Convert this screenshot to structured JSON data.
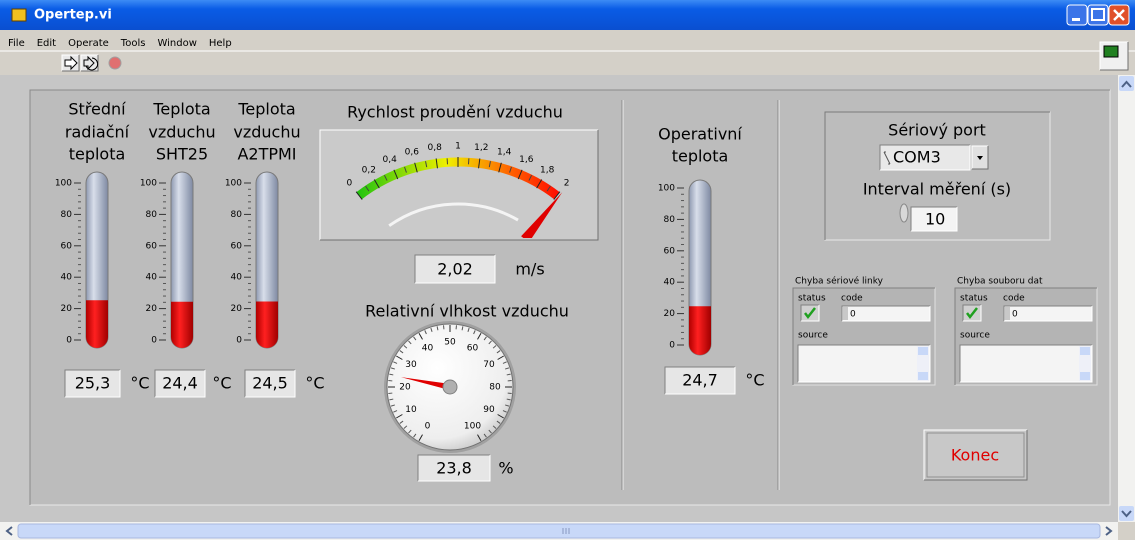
{
  "window": {
    "title": "Opertep.vi",
    "menu": [
      "File",
      "Edit",
      "Operate",
      "Tools",
      "Window",
      "Help"
    ]
  },
  "thermometer_range": [
    0,
    100
  ],
  "thermometer_ticks": [
    0,
    20,
    40,
    60,
    80,
    100
  ],
  "thermometers": [
    {
      "label": [
        "Střední",
        "radiační",
        "teplota"
      ],
      "value": 25.3,
      "value_label": "25,3",
      "unit": "°C"
    },
    {
      "label": [
        "Teplota",
        "vzduchu",
        "SHT25"
      ],
      "value": 24.4,
      "value_label": "24,4",
      "unit": "°C"
    },
    {
      "label": [
        "Teplota",
        "vzduchu",
        "A2TPMI"
      ],
      "value": 24.5,
      "value_label": "24,5",
      "unit": "°C"
    },
    {
      "label": [
        "Operativní",
        "teplota"
      ],
      "value": 24.7,
      "value_label": "24,7",
      "unit": "°C"
    }
  ],
  "air_speed": {
    "title": "Rychlost proudění vzduchu",
    "value": 2.02,
    "value_label": "2,02",
    "unit": "m/s",
    "range": [
      0,
      2
    ],
    "ticks": [
      0,
      {
        "value": 0.2,
        "label": "0,2"
      },
      {
        "value": 0.4,
        "label": "0,4"
      },
      {
        "value": 0.6,
        "label": "0,6"
      },
      {
        "value": 0.8,
        "label": "0,8"
      },
      1,
      {
        "value": 1.2,
        "label": "1,2"
      },
      {
        "value": 1.4,
        "label": "1,4"
      },
      {
        "value": 1.6,
        "label": "1,6"
      },
      {
        "value": 1.8,
        "label": "1,8"
      },
      2
    ]
  },
  "humidity": {
    "title": "Relativní vlhkost vzduchu",
    "value": 23.8,
    "value_label": "23,8",
    "unit": "%",
    "range": [
      0,
      100
    ],
    "ticks": [
      0,
      10,
      20,
      30,
      40,
      50,
      60,
      70,
      80,
      90,
      100
    ]
  },
  "serial": {
    "label": "Sériový port",
    "port": "COM3",
    "interval_label": "Interval měření (s)",
    "interval": 10
  },
  "errors": [
    {
      "title": "Chyba sériové linky",
      "status_label": "status",
      "code_label": "code",
      "code": 0,
      "source_label": "source"
    },
    {
      "title": "Chyba souboru dat",
      "status_label": "status",
      "code_label": "code",
      "code": 0,
      "source_label": "source"
    }
  ],
  "button": "Konec"
}
